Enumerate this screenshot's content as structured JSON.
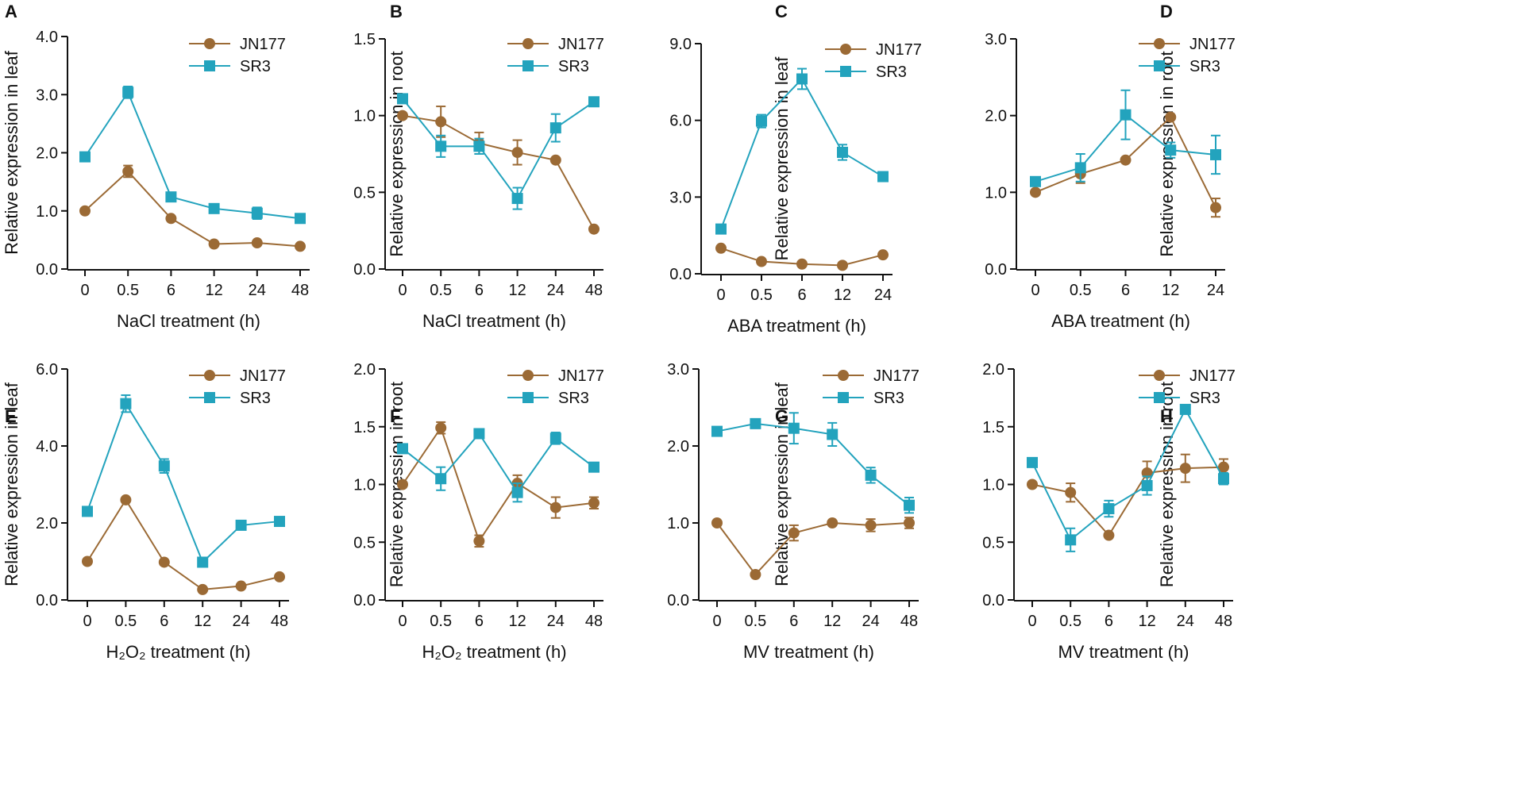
{
  "colors": {
    "jn177": "#9B6A35",
    "sr3": "#23A3BD",
    "axis": "#111111"
  },
  "chart_data": [
    {
      "panel": "A",
      "type": "line",
      "title": "",
      "xlabel": "NaCl treatment (h)",
      "ylabel": "Relative expression in leaf",
      "categories": [
        "0",
        "0.5",
        "6",
        "12",
        "24",
        "48"
      ],
      "ylim": [
        0,
        4
      ],
      "yticks": [
        0,
        1,
        2,
        3,
        4
      ],
      "ytick_labels": [
        "0.0",
        "1.0",
        "2.0",
        "3.0",
        "4.0"
      ],
      "legend": {
        "position": "top-right",
        "entries": [
          "JN177",
          "SR3"
        ]
      },
      "series": [
        {
          "name": "JN177",
          "marker": "circle",
          "values": [
            1.0,
            1.68,
            0.87,
            0.43,
            0.45,
            0.39
          ],
          "errors": [
            0,
            0.1,
            0,
            0,
            0,
            0
          ]
        },
        {
          "name": "SR3",
          "marker": "square",
          "values": [
            1.93,
            3.04,
            1.24,
            1.04,
            0.96,
            0.87
          ],
          "errors": [
            0,
            0.1,
            0.06,
            0,
            0.1,
            0
          ]
        }
      ]
    },
    {
      "panel": "B",
      "type": "line",
      "title": "",
      "xlabel": "NaCl treatment (h)",
      "ylabel": "Relative expression in root",
      "categories": [
        "0",
        "0.5",
        "6",
        "12",
        "24",
        "48"
      ],
      "ylim": [
        0,
        1.5
      ],
      "yticks": [
        0,
        0.5,
        1,
        1.5
      ],
      "ytick_labels": [
        "0.0",
        "0.5",
        "1.0",
        "1.5"
      ],
      "legend": {
        "position": "top-right",
        "entries": [
          "JN177",
          "SR3"
        ]
      },
      "series": [
        {
          "name": "JN177",
          "marker": "circle",
          "values": [
            1.0,
            0.96,
            0.82,
            0.76,
            0.71,
            0.26
          ],
          "errors": [
            0,
            0.1,
            0.07,
            0.08,
            0,
            0
          ]
        },
        {
          "name": "SR3",
          "marker": "square",
          "values": [
            1.11,
            0.8,
            0.8,
            0.46,
            0.92,
            1.09
          ],
          "errors": [
            0,
            0.07,
            0.05,
            0.07,
            0.09,
            0
          ]
        }
      ]
    },
    {
      "panel": "C",
      "type": "line",
      "title": "",
      "xlabel": "ABA treatment (h)",
      "ylabel": "Relative expression in leaf",
      "categories": [
        "0",
        "0.5",
        "6",
        "12",
        "24"
      ],
      "ylim": [
        0,
        9
      ],
      "yticks": [
        0,
        3,
        6,
        9
      ],
      "ytick_labels": [
        "0.0",
        "3.0",
        "6.0",
        "9.0"
      ],
      "legend": {
        "position": "top-right",
        "entries": [
          "JN177",
          "SR3"
        ]
      },
      "series": [
        {
          "name": "JN177",
          "marker": "circle",
          "values": [
            1.0,
            0.48,
            0.38,
            0.33,
            0.74
          ],
          "errors": [
            0,
            0,
            0,
            0,
            0
          ]
        },
        {
          "name": "SR3",
          "marker": "square",
          "values": [
            1.75,
            5.97,
            7.62,
            4.75,
            3.8
          ],
          "errors": [
            0,
            0.25,
            0.4,
            0.3,
            0
          ]
        }
      ]
    },
    {
      "panel": "D",
      "type": "line",
      "title": "",
      "xlabel": "ABA treatment (h)",
      "ylabel": "Relative expression in root",
      "categories": [
        "0",
        "0.5",
        "6",
        "12",
        "24"
      ],
      "ylim": [
        0,
        3
      ],
      "yticks": [
        0,
        1,
        2,
        3
      ],
      "ytick_labels": [
        "0.0",
        "1.0",
        "2.0",
        "3.0"
      ],
      "legend": {
        "position": "top-right",
        "entries": [
          "JN177",
          "SR3"
        ]
      },
      "series": [
        {
          "name": "JN177",
          "marker": "circle",
          "values": [
            1.0,
            1.24,
            1.42,
            1.98,
            0.8
          ],
          "errors": [
            0,
            0.12,
            0,
            0,
            0.12
          ]
        },
        {
          "name": "SR3",
          "marker": "square",
          "values": [
            1.14,
            1.32,
            2.01,
            1.55,
            1.49
          ],
          "errors": [
            0,
            0.18,
            0.32,
            0.1,
            0.25
          ]
        }
      ]
    },
    {
      "panel": "E",
      "type": "line",
      "title": "",
      "xlabel": "H₂O₂ treatment (h)",
      "ylabel": "Relative expression in leaf",
      "categories": [
        "0",
        "0.5",
        "6",
        "12",
        "24",
        "48"
      ],
      "ylim": [
        0,
        6
      ],
      "yticks": [
        0,
        2,
        4,
        6
      ],
      "ytick_labels": [
        "0.0",
        "2.0",
        "4.0",
        "6.0"
      ],
      "legend": {
        "position": "top-right",
        "entries": [
          "JN177",
          "SR3"
        ]
      },
      "series": [
        {
          "name": "JN177",
          "marker": "circle",
          "values": [
            1.0,
            2.6,
            0.98,
            0.27,
            0.36,
            0.6
          ],
          "errors": [
            0,
            0,
            0,
            0,
            0,
            0
          ]
        },
        {
          "name": "SR3",
          "marker": "square",
          "values": [
            2.3,
            5.1,
            3.48,
            0.98,
            1.94,
            2.04
          ],
          "errors": [
            0,
            0.22,
            0.18,
            0,
            0,
            0
          ]
        }
      ]
    },
    {
      "panel": "F",
      "type": "line",
      "title": "",
      "xlabel": "H₂O₂ treatment (h)",
      "ylabel": "Relative expression in root",
      "categories": [
        "0",
        "0.5",
        "6",
        "12",
        "24",
        "48"
      ],
      "ylim": [
        0,
        2
      ],
      "yticks": [
        0,
        0.5,
        1,
        1.5,
        2
      ],
      "ytick_labels": [
        "0.0",
        "0.5",
        "1.0",
        "1.5",
        "2.0"
      ],
      "legend": {
        "position": "top-right",
        "entries": [
          "JN177",
          "SR3"
        ]
      },
      "series": [
        {
          "name": "JN177",
          "marker": "circle",
          "values": [
            1.0,
            1.49,
            0.51,
            1.01,
            0.8,
            0.84
          ],
          "errors": [
            0,
            0.05,
            0.05,
            0.07,
            0.09,
            0.05
          ]
        },
        {
          "name": "SR3",
          "marker": "square",
          "values": [
            1.31,
            1.05,
            1.44,
            0.93,
            1.4,
            1.15
          ],
          "errors": [
            0,
            0.1,
            0,
            0.08,
            0.05,
            0
          ]
        }
      ]
    },
    {
      "panel": "G",
      "type": "line",
      "title": "",
      "xlabel": "MV treatment (h)",
      "ylabel": "Relative expression in leaf",
      "categories": [
        "0",
        "0.5",
        "6",
        "12",
        "24",
        "48"
      ],
      "ylim": [
        0,
        3
      ],
      "yticks": [
        0,
        1,
        2,
        3
      ],
      "ytick_labels": [
        "0.0",
        "1.0",
        "2.0",
        "3.0"
      ],
      "legend": {
        "position": "top-right",
        "entries": [
          "JN177",
          "SR3"
        ]
      },
      "series": [
        {
          "name": "JN177",
          "marker": "circle",
          "values": [
            1.0,
            0.33,
            0.87,
            1.0,
            0.97,
            1.0
          ],
          "errors": [
            0,
            0,
            0.1,
            0,
            0.08,
            0.07
          ]
        },
        {
          "name": "SR3",
          "marker": "square",
          "values": [
            2.19,
            2.29,
            2.23,
            2.15,
            1.62,
            1.23
          ],
          "errors": [
            0,
            0,
            0.2,
            0.15,
            0.1,
            0.1
          ]
        }
      ]
    },
    {
      "panel": "H",
      "type": "line",
      "title": "",
      "xlabel": "MV treatment (h)",
      "ylabel": "Relative expression in root",
      "categories": [
        "0",
        "0.5",
        "6",
        "12",
        "24",
        "48"
      ],
      "ylim": [
        0,
        2
      ],
      "yticks": [
        0,
        0.5,
        1,
        1.5,
        2
      ],
      "ytick_labels": [
        "0.0",
        "0.5",
        "1.0",
        "1.5",
        "2.0"
      ],
      "legend": {
        "position": "top-right",
        "entries": [
          "JN177",
          "SR3"
        ]
      },
      "series": [
        {
          "name": "JN177",
          "marker": "circle",
          "values": [
            1.0,
            0.93,
            0.56,
            1.1,
            1.14,
            1.15
          ],
          "errors": [
            0,
            0.08,
            0,
            0.1,
            0.12,
            0.07
          ]
        },
        {
          "name": "SR3",
          "marker": "square",
          "values": [
            1.19,
            0.52,
            0.79,
            0.99,
            1.65,
            1.05
          ],
          "errors": [
            0,
            0.1,
            0.07,
            0.08,
            0,
            0.05
          ]
        }
      ]
    }
  ]
}
